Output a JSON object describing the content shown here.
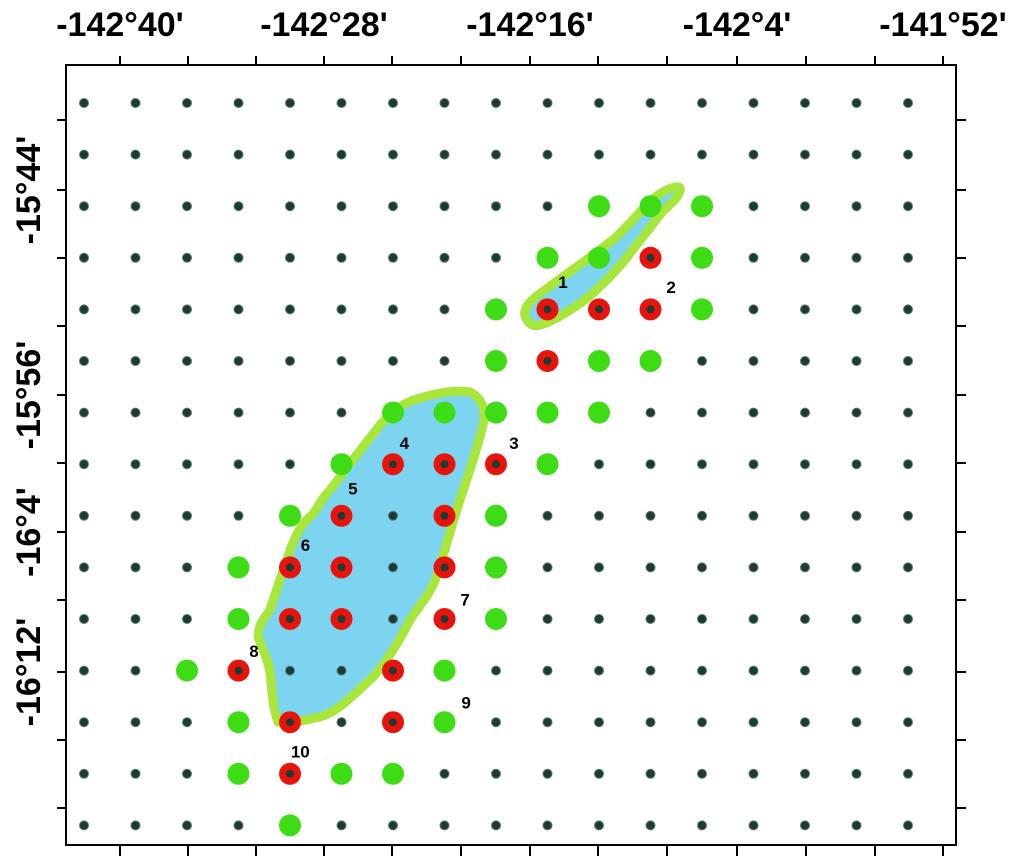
{
  "map": {
    "lon_ticks": [
      "-142°40'",
      "-142°28'",
      "-142°16'",
      "-142°4'",
      "-141°52'"
    ],
    "lat_ticks": [
      "-15°44'",
      "-15°56'",
      "-16°4'",
      "-16°12'"
    ],
    "grid": {
      "cols": 17,
      "rows": 15
    },
    "colors": {
      "grid_dot": "#1e3a34",
      "green": "#3ddc14",
      "red": "#e8140c",
      "region_fill": "#7dd4f0",
      "region_border": "#a8e63c"
    },
    "green_points": [
      [
        10,
        2
      ],
      [
        11,
        2
      ],
      [
        12,
        2
      ],
      [
        9,
        3
      ],
      [
        10,
        3
      ],
      [
        12,
        3
      ],
      [
        8,
        4
      ],
      [
        12,
        4
      ],
      [
        8,
        5
      ],
      [
        10,
        5
      ],
      [
        11,
        5
      ],
      [
        6,
        6
      ],
      [
        7,
        6
      ],
      [
        8,
        6
      ],
      [
        9,
        6
      ],
      [
        10,
        6
      ],
      [
        5,
        7
      ],
      [
        9,
        7
      ],
      [
        4,
        8
      ],
      [
        8,
        8
      ],
      [
        3,
        9
      ],
      [
        8,
        9
      ],
      [
        3,
        10
      ],
      [
        8,
        10
      ],
      [
        2,
        11
      ],
      [
        7,
        11
      ],
      [
        3,
        12
      ],
      [
        7,
        12
      ],
      [
        3,
        13
      ],
      [
        5,
        13
      ],
      [
        6,
        13
      ],
      [
        4,
        14
      ]
    ],
    "red_points": [
      [
        9,
        4
      ],
      [
        10,
        4
      ],
      [
        11,
        3
      ],
      [
        11,
        4
      ],
      [
        9,
        5
      ],
      [
        6,
        7
      ],
      [
        7,
        7
      ],
      [
        8,
        7
      ],
      [
        5,
        8
      ],
      [
        7,
        8
      ],
      [
        4,
        9
      ],
      [
        5,
        9
      ],
      [
        7,
        9
      ],
      [
        4,
        10
      ],
      [
        5,
        10
      ],
      [
        7,
        10
      ],
      [
        3,
        11
      ],
      [
        6,
        11
      ],
      [
        4,
        12
      ],
      [
        6,
        12
      ],
      [
        4,
        13
      ]
    ],
    "labels": [
      {
        "text": "1",
        "c": 9.3,
        "r": 3.5
      },
      {
        "text": "2",
        "c": 11.4,
        "r": 3.6
      },
      {
        "text": "3",
        "c": 8.35,
        "r": 6.62
      },
      {
        "text": "4",
        "c": 6.22,
        "r": 6.62
      },
      {
        "text": "5",
        "c": 5.22,
        "r": 7.5
      },
      {
        "text": "6",
        "c": 4.3,
        "r": 8.6
      },
      {
        "text": "7",
        "c": 7.4,
        "r": 9.65
      },
      {
        "text": "8",
        "c": 3.3,
        "r": 10.65
      },
      {
        "text": "9",
        "c": 7.42,
        "r": 11.65
      },
      {
        "text": "10",
        "c": 4.2,
        "r": 12.6
      }
    ]
  }
}
